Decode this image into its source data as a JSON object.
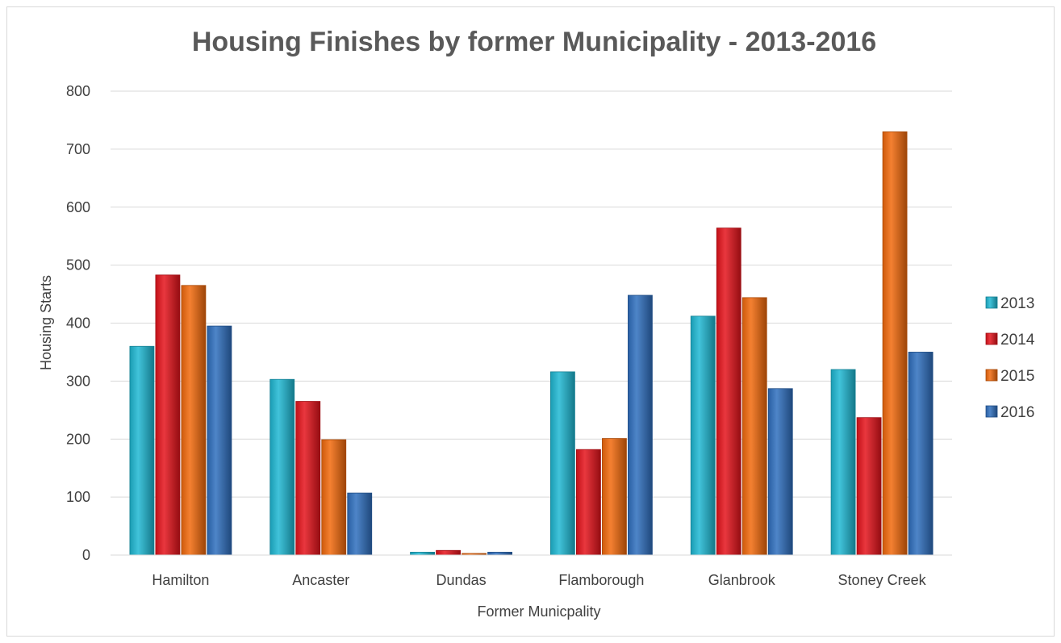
{
  "chart_data": {
    "type": "bar",
    "title": "Housing Finishes by former Municipality - 2013-2016",
    "xlabel": "Former Municpality",
    "ylabel": "Housing Starts",
    "ylim": [
      0,
      800
    ],
    "yticks": [
      0,
      100,
      200,
      300,
      400,
      500,
      600,
      700,
      800
    ],
    "grid": true,
    "legend_position": "right",
    "categories": [
      "Hamilton",
      "Ancaster",
      "Dundas",
      "Flamborough",
      "Glanbrook",
      "Stoney Creek"
    ],
    "series": [
      {
        "name": "2013",
        "color": "#1fb8d3",
        "values": [
          360,
          303,
          5,
          316,
          412,
          320
        ]
      },
      {
        "name": "2014",
        "color": "#e5141c",
        "values": [
          483,
          265,
          8,
          182,
          564,
          237
        ]
      },
      {
        "name": "2015",
        "color": "#f26a0d",
        "values": [
          465,
          199,
          2,
          201,
          444,
          730
        ]
      },
      {
        "name": "2016",
        "color": "#2f6fbe",
        "values": [
          395,
          107,
          5,
          448,
          287,
          350
        ]
      }
    ]
  }
}
